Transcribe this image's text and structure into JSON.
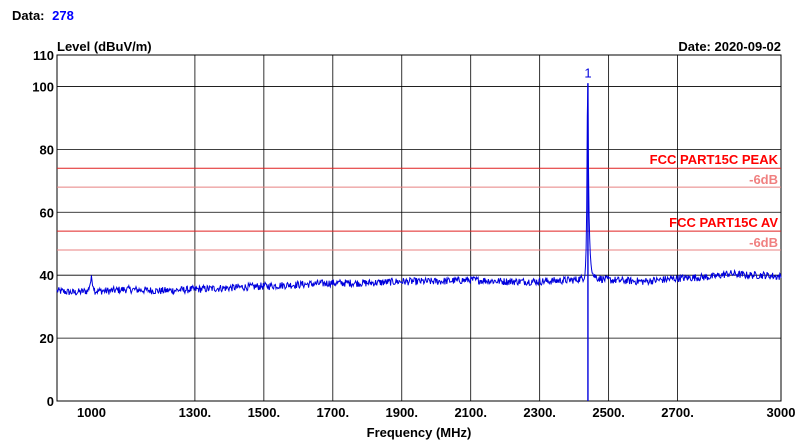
{
  "header": {
    "data_label": "Data:",
    "data_value": "278",
    "date_text": "Date: 2020-09-02"
  },
  "colors": {
    "trace": "#0000dd",
    "limit_line": "#e02020",
    "limit_label": "#ff0000",
    "margin_line": "#e88080",
    "margin_label": "#f08080",
    "grid": "#000000",
    "data_value": "#0000ff"
  },
  "chart_data": {
    "type": "line",
    "ylabel": "Level (dBuV/m)",
    "xlabel": "Frequency (MHz)",
    "xlim": [
      900,
      3000
    ],
    "ylim": [
      0,
      110
    ],
    "x_ticks": [
      1000,
      1300,
      1500,
      1700,
      1900,
      2100,
      2300,
      2500,
      2700,
      3000
    ],
    "x_tick_labels": [
      "1000",
      "1300.",
      "1500.",
      "1700.",
      "1900.",
      "2100.",
      "2300.",
      "2500.",
      "2700.",
      "3000"
    ],
    "y_ticks": [
      0,
      20,
      40,
      60,
      80,
      100,
      110
    ],
    "grid": true,
    "limit_lines": [
      {
        "label": "FCC PART15C PEAK",
        "value": 74,
        "margin_label": "-6dB",
        "margin_value": 68
      },
      {
        "label": "FCC PART15C AV",
        "value": 54,
        "margin_label": "-6dB",
        "margin_value": 48
      }
    ],
    "marker": {
      "label": "1",
      "x": 2440,
      "y": 101
    },
    "series": [
      {
        "x": [
          900,
          950,
          990,
          1000,
          1010,
          1050,
          1100,
          1200,
          1300,
          1400,
          1500,
          1600,
          1700,
          1800,
          1900,
          2000,
          2100,
          2200,
          2300,
          2400,
          2425,
          2432,
          2436,
          2438,
          2440,
          2442,
          2444,
          2448,
          2455,
          2470,
          2500,
          2600,
          2700,
          2800,
          2850,
          2900,
          2950,
          3000
        ],
        "y": [
          35,
          34.5,
          35,
          39,
          35,
          35,
          35.5,
          35,
          35.5,
          36,
          36.5,
          37,
          37.5,
          37.5,
          38,
          38,
          38.5,
          38,
          38,
          38.5,
          39,
          40,
          52,
          89,
          101,
          70,
          55,
          44,
          40,
          39,
          38.5,
          38,
          39,
          39.5,
          40.5,
          40,
          40,
          39.5
        ]
      }
    ]
  }
}
